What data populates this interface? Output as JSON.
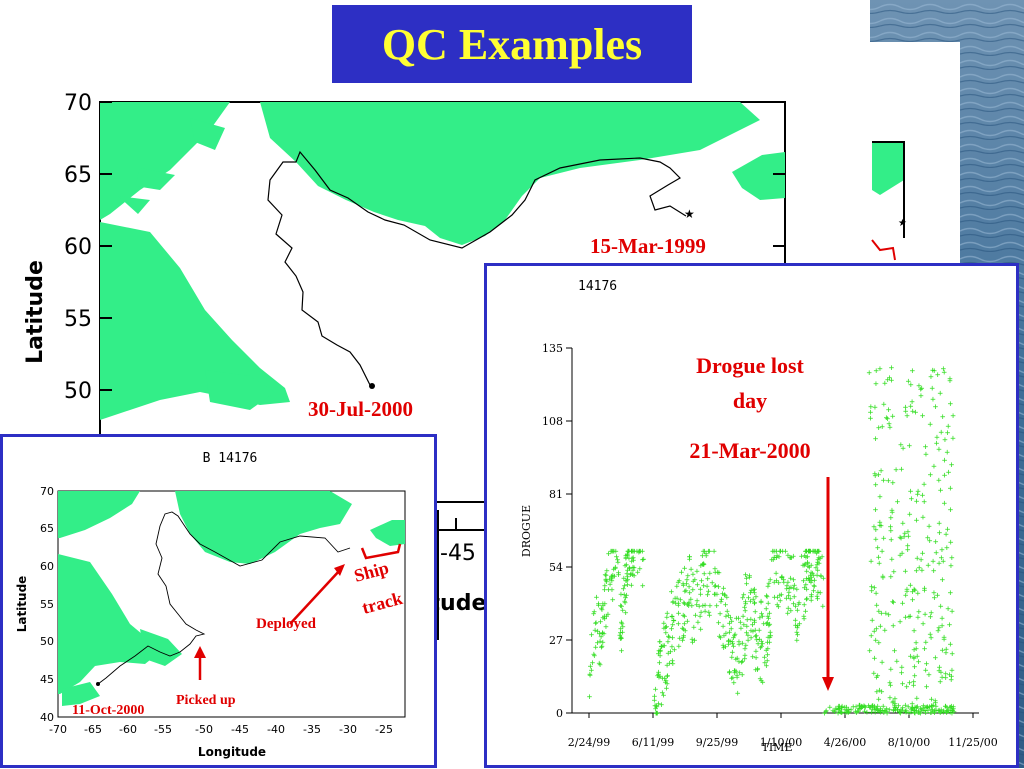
{
  "slide": {
    "title": "QC Examples",
    "accent_color": "#2d2fc4",
    "title_color": "#ffff33",
    "annotation_color": "#e00000",
    "land_color": "#33ee88",
    "drogue_color": "#33dd22"
  },
  "chart_data": [
    {
      "type": "map",
      "id": "big-map",
      "ylabel": "Latitude",
      "y_ticks": [
        "70",
        "65",
        "60",
        "55",
        "50"
      ],
      "x_ticks_visible": [
        "-45"
      ],
      "xlabel_partial": "itude",
      "annotations": [
        "15-Mar-1999",
        "30-Jul-2000"
      ]
    },
    {
      "type": "map",
      "id": "small-map",
      "title": "B 14176",
      "xlabel": "Longitude",
      "ylabel": "Latitude",
      "x_ticks": [
        "-70",
        "-65",
        "-60",
        "-55",
        "-50",
        "-45",
        "-40",
        "-35",
        "-30",
        "-25"
      ],
      "y_ticks": [
        "70",
        "65",
        "60",
        "55",
        "50",
        "45",
        "40"
      ],
      "xlim": [
        -70,
        -23
      ],
      "ylim": [
        40,
        70
      ],
      "annotations": {
        "deployed": "Deployed",
        "picked_up": "Picked up",
        "end_date": "11-Oct-2000",
        "ship_track_line1": "Ship",
        "ship_track_line2": "track"
      }
    },
    {
      "type": "scatter",
      "id": "drogue-chart",
      "title": "14176",
      "xlabel": "TIME",
      "ylabel": "DROGUE",
      "x_ticks": [
        "2/24/99",
        "6/11/99",
        "9/25/99",
        "1/10/00",
        "4/26/00",
        "8/10/00",
        "11/25/00"
      ],
      "y_ticks": [
        "0",
        "27",
        "54",
        "81",
        "108",
        "135"
      ],
      "ylim": [
        0,
        135
      ],
      "annotation": {
        "line1": "Drogue lost",
        "line2": "day",
        "date": "21-Mar-2000"
      },
      "series": [
        {
          "x_range": [
            "3/1/99",
            "6/15/99"
          ],
          "points": [
            [
              0,
              8
            ],
            [
              0.06,
              22
            ],
            [
              0.1,
              30
            ],
            [
              0.15,
              36
            ],
            [
              0.2,
              26
            ],
            [
              0.25,
              34
            ],
            [
              0.3,
              42
            ],
            [
              0.35,
              48
            ],
            [
              0.42,
              52
            ],
            [
              0.5,
              55
            ],
            [
              0.55,
              40
            ],
            [
              0.6,
              30
            ],
            [
              0.65,
              44
            ],
            [
              0.7,
              56
            ],
            [
              0.78,
              58
            ],
            [
              0.85,
              58
            ],
            [
              0.9,
              57
            ],
            [
              0.95,
              58
            ],
            [
              1,
              57
            ]
          ]
        },
        {
          "x_range": [
            "6/15/99",
            "3/21/00"
          ],
          "points": [
            [
              0,
              5
            ],
            [
              0.05,
              18
            ],
            [
              0.1,
              30
            ],
            [
              0.15,
              40
            ],
            [
              0.2,
              45
            ],
            [
              0.25,
              38
            ],
            [
              0.3,
              50
            ],
            [
              0.35,
              52
            ],
            [
              0.4,
              35
            ],
            [
              0.45,
              28
            ],
            [
              0.5,
              20
            ],
            [
              0.55,
              42
            ],
            [
              0.6,
              30
            ],
            [
              0.65,
              25
            ],
            [
              0.7,
              50
            ],
            [
              0.75,
              57
            ],
            [
              0.8,
              48
            ],
            [
              0.85,
              40
            ],
            [
              0.9,
              55
            ],
            [
              0.95,
              58
            ],
            [
              1,
              40
            ]
          ]
        },
        {
          "x_range": [
            "3/21/00",
            "10/11/00"
          ],
          "description": "near zero mostly, widely scattered up to ~125 after June 2000"
        }
      ]
    }
  ]
}
